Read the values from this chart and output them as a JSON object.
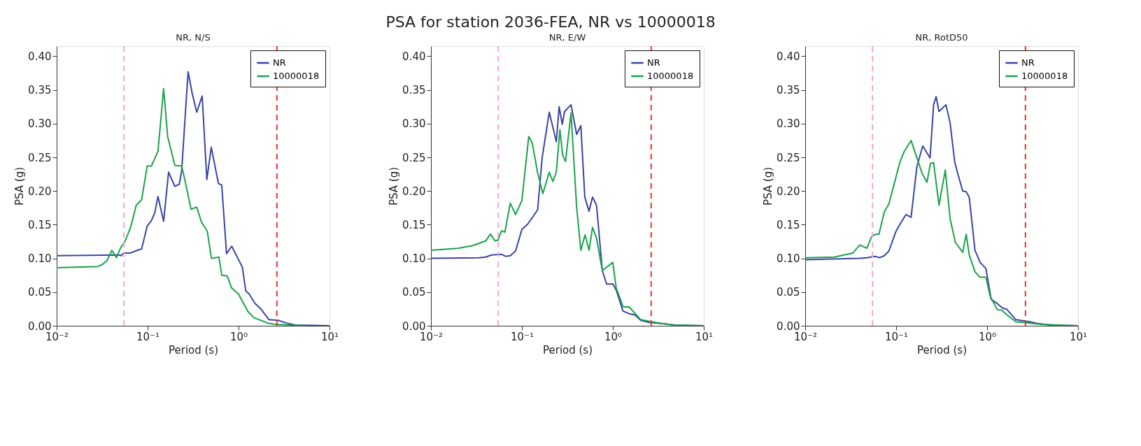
{
  "chart_data": [
    {
      "type": "line",
      "title": "NR, N/S",
      "xlabel": "Period (s)",
      "ylabel": "PSA (g)",
      "annotations": [
        "PSA for station 2036-FEA, NR vs 10000018"
      ],
      "log": "x",
      "legend": "top right",
      "grid": false,
      "xlim": [
        0.01,
        10
      ],
      "xticks": [
        {
          "value": 0.01,
          "label": "10⁻²"
        },
        {
          "value": 0.1,
          "label": "10⁻¹"
        },
        {
          "value": 1,
          "label": "10⁰"
        },
        {
          "value": 10,
          "label": "10¹"
        }
      ],
      "ylim": [
        0,
        0.415
      ],
      "yticks": [
        {
          "value": 0,
          "label": "0.00"
        },
        {
          "value": 0.05,
          "label": "0.05"
        },
        {
          "value": 0.1,
          "label": "0.10"
        },
        {
          "value": 0.15,
          "label": "0.15"
        },
        {
          "value": 0.2,
          "label": "0.20"
        },
        {
          "value": 0.25,
          "label": "0.25"
        },
        {
          "value": 0.3,
          "label": "0.30"
        },
        {
          "value": 0.35,
          "label": "0.35"
        },
        {
          "value": 0.4,
          "label": "0.40"
        }
      ],
      "ref_lines": [
        {
          "axis": "x",
          "value": 0.055,
          "color": "#f4a6cc",
          "line_style": "dashed"
        },
        {
          "axis": "x",
          "value": 2.64,
          "color": "#e8342a",
          "line_style": "dashed"
        }
      ],
      "series": [
        {
          "name": "NR",
          "color": "#3a44a6",
          "x": [
            0.01,
            0.0482,
            0.0512,
            0.0546,
            0.0647,
            0.0773,
            0.0859,
            0.099,
            0.11,
            0.12,
            0.13,
            0.15,
            0.17,
            0.199,
            0.223,
            0.237,
            0.262,
            0.279,
            0.309,
            0.347,
            0.398,
            0.448,
            0.501,
            0.601,
            0.653,
            0.738,
            0.841,
            1.1,
            1.2,
            1.31,
            1.52,
            1.76,
            2.16,
            2.73,
            3.36,
            4.25,
            10
          ],
          "values": [
            0.104,
            0.105,
            0.104,
            0.108,
            0.108,
            0.112,
            0.114,
            0.148,
            0.156,
            0.168,
            0.192,
            0.155,
            0.228,
            0.207,
            0.21,
            0.23,
            0.322,
            0.377,
            0.345,
            0.317,
            0.341,
            0.217,
            0.265,
            0.211,
            0.209,
            0.107,
            0.118,
            0.087,
            0.052,
            0.047,
            0.033,
            0.025,
            0.009,
            0.008,
            0.004,
            0.001,
            0
          ]
        },
        {
          "name": "10000018",
          "color": "#1aa34a",
          "x": [
            0.01,
            0.0284,
            0.0319,
            0.0359,
            0.0404,
            0.0455,
            0.0506,
            0.0559,
            0.0647,
            0.075,
            0.0859,
            0.099,
            0.11,
            0.13,
            0.15,
            0.166,
            0.199,
            0.237,
            0.259,
            0.3,
            0.347,
            0.391,
            0.453,
            0.504,
            0.608,
            0.653,
            0.748,
            0.841,
            1.0,
            1.27,
            1.47,
            2.09,
            2.5,
            5.71
          ],
          "values": [
            0.086,
            0.088,
            0.091,
            0.097,
            0.112,
            0.101,
            0.116,
            0.124,
            0.145,
            0.179,
            0.187,
            0.237,
            0.237,
            0.259,
            0.352,
            0.281,
            0.238,
            0.237,
            0.214,
            0.173,
            0.176,
            0.154,
            0.14,
            0.1,
            0.102,
            0.075,
            0.074,
            0.056,
            0.047,
            0.021,
            0.012,
            0.004,
            0.002,
            0
          ]
        }
      ]
    },
    {
      "type": "line",
      "title": "NR, E/W",
      "xlabel": "Period (s)",
      "ylabel": "PSA (g)",
      "log": "x",
      "legend": "top right",
      "grid": false,
      "xlim": [
        0.01,
        10
      ],
      "xticks": [
        {
          "value": 0.01,
          "label": "10⁻²"
        },
        {
          "value": 0.1,
          "label": "10⁻¹"
        },
        {
          "value": 1,
          "label": "10⁰"
        },
        {
          "value": 10,
          "label": "10¹"
        }
      ],
      "ylim": [
        0,
        0.415
      ],
      "yticks": [
        {
          "value": 0,
          "label": "0.00"
        },
        {
          "value": 0.05,
          "label": "0.05"
        },
        {
          "value": 0.1,
          "label": "0.10"
        },
        {
          "value": 0.15,
          "label": "0.15"
        },
        {
          "value": 0.2,
          "label": "0.20"
        },
        {
          "value": 0.25,
          "label": "0.25"
        },
        {
          "value": 0.3,
          "label": "0.30"
        },
        {
          "value": 0.35,
          "label": "0.35"
        },
        {
          "value": 0.4,
          "label": "0.40"
        }
      ],
      "ref_lines": [
        {
          "axis": "x",
          "value": 0.055,
          "color": "#f4a6cc",
          "line_style": "dashed"
        },
        {
          "axis": "x",
          "value": 2.64,
          "color": "#e8342a",
          "line_style": "dashed"
        }
      ],
      "series": [
        {
          "name": "NR",
          "color": "#3a44a6",
          "x": [
            0.01,
            0.0336,
            0.04,
            0.0464,
            0.0598,
            0.0662,
            0.0745,
            0.0853,
            0.1,
            0.116,
            0.149,
            0.167,
            0.2,
            0.219,
            0.239,
            0.257,
            0.278,
            0.295,
            0.347,
            0.4,
            0.445,
            0.492,
            0.547,
            0.598,
            0.662,
            0.767,
            0.853,
            1.0,
            1.09,
            1.29,
            1.51,
            1.75,
            2.03,
            2.5,
            3.56,
            4.78,
            10
          ],
          "values": [
            0.1,
            0.101,
            0.102,
            0.105,
            0.106,
            0.103,
            0.104,
            0.111,
            0.143,
            0.151,
            0.172,
            0.249,
            0.317,
            0.295,
            0.273,
            0.325,
            0.299,
            0.318,
            0.328,
            0.284,
            0.297,
            0.191,
            0.17,
            0.191,
            0.179,
            0.082,
            0.062,
            0.062,
            0.053,
            0.022,
            0.018,
            0.016,
            0.008,
            0.005,
            0.003,
            0.001,
            0
          ]
        },
        {
          "name": "10000018",
          "color": "#1aa34a",
          "x": [
            0.01,
            0.0197,
            0.029,
            0.04,
            0.0451,
            0.0507,
            0.0545,
            0.0598,
            0.065,
            0.0745,
            0.0853,
            0.1,
            0.119,
            0.13,
            0.149,
            0.17,
            0.2,
            0.219,
            0.239,
            0.262,
            0.281,
            0.302,
            0.347,
            0.4,
            0.445,
            0.495,
            0.547,
            0.598,
            0.662,
            0.767,
            1.0,
            1.09,
            1.3,
            1.51,
            2.03,
            2.65,
            3.56,
            4.78,
            10
          ],
          "values": [
            0.112,
            0.115,
            0.119,
            0.126,
            0.136,
            0.126,
            0.127,
            0.141,
            0.139,
            0.182,
            0.165,
            0.186,
            0.281,
            0.271,
            0.227,
            0.196,
            0.228,
            0.214,
            0.228,
            0.291,
            0.253,
            0.244,
            0.316,
            0.176,
            0.112,
            0.135,
            0.112,
            0.146,
            0.13,
            0.082,
            0.094,
            0.056,
            0.028,
            0.028,
            0.009,
            0.006,
            0.003,
            0.001,
            0
          ]
        }
      ]
    },
    {
      "type": "line",
      "title": "NR, RotD50",
      "xlabel": "Period (s)",
      "ylabel": "PSA (g)",
      "log": "x",
      "legend": "top right",
      "grid": false,
      "xlim": [
        0.01,
        10
      ],
      "xticks": [
        {
          "value": 0.01,
          "label": "10⁻²"
        },
        {
          "value": 0.1,
          "label": "10⁻¹"
        },
        {
          "value": 1,
          "label": "10⁰"
        },
        {
          "value": 10,
          "label": "10¹"
        }
      ],
      "ylim": [
        0,
        0.415
      ],
      "yticks": [
        {
          "value": 0,
          "label": "0.00"
        },
        {
          "value": 0.05,
          "label": "0.05"
        },
        {
          "value": 0.1,
          "label": "0.10"
        },
        {
          "value": 0.15,
          "label": "0.15"
        },
        {
          "value": 0.2,
          "label": "0.20"
        },
        {
          "value": 0.25,
          "label": "0.25"
        },
        {
          "value": 0.3,
          "label": "0.30"
        },
        {
          "value": 0.35,
          "label": "0.35"
        },
        {
          "value": 0.4,
          "label": "0.40"
        }
      ],
      "ref_lines": [
        {
          "axis": "x",
          "value": 0.055,
          "color": "#f4a6cc",
          "line_style": "dashed"
        },
        {
          "axis": "x",
          "value": 2.64,
          "color": "#e8342a",
          "line_style": "dashed"
        }
      ],
      "series": [
        {
          "name": "NR",
          "color": "#3a44a6",
          "x": [
            0.01,
            0.0399,
            0.0476,
            0.0585,
            0.0658,
            0.0741,
            0.0833,
            0.0994,
            0.114,
            0.128,
            0.146,
            0.169,
            0.196,
            0.236,
            0.258,
            0.275,
            0.296,
            0.353,
            0.392,
            0.441,
            0.473,
            0.539,
            0.589,
            0.636,
            0.736,
            0.838,
            0.971,
            1.11,
            1.29,
            1.49,
            1.63,
            2.07,
            2.94,
            3.72,
            4.99,
            10
          ],
          "values": [
            0.098,
            0.1,
            0.101,
            0.103,
            0.101,
            0.104,
            0.111,
            0.14,
            0.154,
            0.165,
            0.161,
            0.236,
            0.267,
            0.249,
            0.328,
            0.34,
            0.318,
            0.328,
            0.301,
            0.243,
            0.227,
            0.2,
            0.199,
            0.191,
            0.112,
            0.094,
            0.085,
            0.039,
            0.033,
            0.026,
            0.025,
            0.009,
            0.006,
            0.003,
            0.001,
            0
          ]
        },
        {
          "name": "10000018",
          "color": "#1aa34a",
          "x": [
            0.01,
            0.0209,
            0.0334,
            0.0399,
            0.0476,
            0.0536,
            0.0596,
            0.0647,
            0.0741,
            0.0833,
            0.0966,
            0.11,
            0.122,
            0.146,
            0.193,
            0.218,
            0.238,
            0.258,
            0.296,
            0.347,
            0.392,
            0.447,
            0.539,
            0.589,
            0.636,
            0.736,
            0.838,
            0.971,
            1.08,
            1.29,
            1.45,
            1.73,
            2.07,
            2.94,
            3.94,
            10
          ],
          "values": [
            0.101,
            0.102,
            0.108,
            0.12,
            0.115,
            0.132,
            0.136,
            0.136,
            0.169,
            0.181,
            0.214,
            0.243,
            0.258,
            0.275,
            0.226,
            0.213,
            0.241,
            0.242,
            0.179,
            0.231,
            0.159,
            0.124,
            0.109,
            0.136,
            0.105,
            0.08,
            0.072,
            0.072,
            0.044,
            0.024,
            0.023,
            0.014,
            0.006,
            0.004,
            0.002,
            0
          ]
        }
      ]
    }
  ]
}
